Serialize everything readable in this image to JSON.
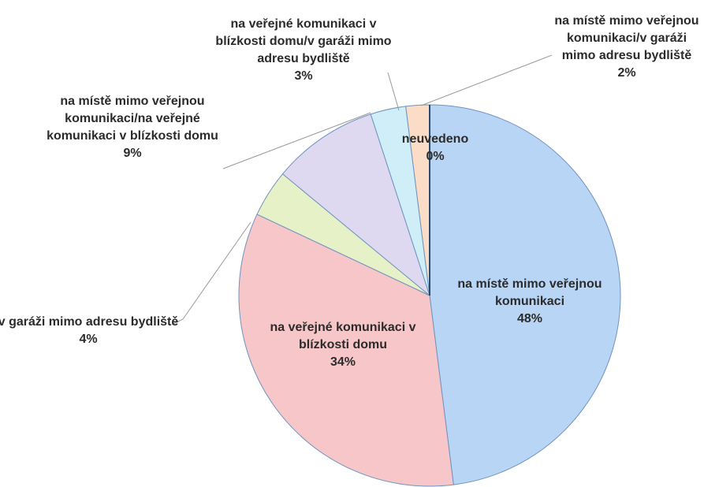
{
  "chart_data": {
    "type": "pie",
    "categories": [
      "na místě mimo veřejnou komunikaci",
      "na veřejné komunikaci v blízkosti domu",
      "v garáži mimo adresu bydliště",
      "na místě mimo veřejnou komunikaci/na veřejné komunikaci v blízkosti domu",
      "na veřejné komunikaci v blízkosti domu/v garáži mimo adresu bydliště",
      "na místě mimo veřejnou komunikaci/v garáži mimo adresu bydliště",
      "neuvedeno"
    ],
    "values": [
      48,
      34,
      4,
      9,
      3,
      2,
      0
    ],
    "value_labels": [
      "48%",
      "34%",
      "4%",
      "9%",
      "3%",
      "2%",
      "0%"
    ],
    "colors": [
      "#b9d5f5",
      "#f7c6c9",
      "#e6f1c8",
      "#ded9f1",
      "#cfeef8",
      "#fbdcc6",
      "#2c4a6b"
    ]
  }
}
